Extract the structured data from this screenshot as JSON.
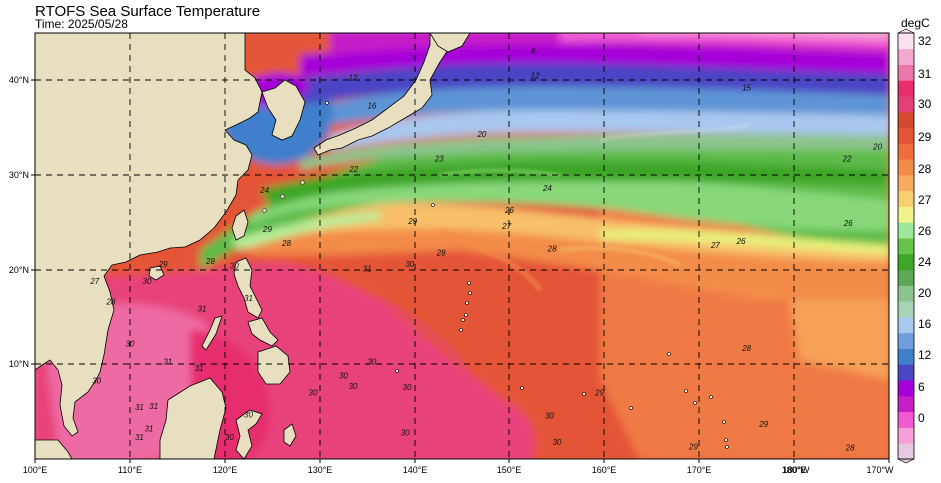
{
  "header": {
    "title": "RTOFS Sea Surface Temperature",
    "time_label": "Time: 2025/05/28"
  },
  "map": {
    "projection": "equirectangular",
    "lon_range": [
      100,
      190
    ],
    "lat_range": [
      0,
      45
    ],
    "x_tick_labels": [
      "100°E",
      "110°E",
      "120°E",
      "130°E",
      "140°E",
      "150°E",
      "160°E",
      "170°E",
      "180°E",
      "180°W",
      "170°W"
    ],
    "y_tick_labels": [
      "10°N",
      "20°N",
      "30°N",
      "40°N"
    ],
    "gridlines": "dashed",
    "land_color": "#e8dfc1",
    "coastline_color": "#000000",
    "contour_labels": [
      {
        "text": "6",
        "lon": 152.5,
        "lat": 42.8
      },
      {
        "text": "12",
        "lon": 133.5,
        "lat": 40.0
      },
      {
        "text": "12",
        "lon": 152.7,
        "lat": 40.2
      },
      {
        "text": "15",
        "lon": 175.0,
        "lat": 38.9
      },
      {
        "text": "16",
        "lon": 135.5,
        "lat": 37.0
      },
      {
        "text": "20",
        "lon": 147.1,
        "lat": 34.0
      },
      {
        "text": "22",
        "lon": 133.6,
        "lat": 30.3
      },
      {
        "text": "22",
        "lon": 185.6,
        "lat": 31.4
      },
      {
        "text": "20",
        "lon": 188.8,
        "lat": 32.7
      },
      {
        "text": "23",
        "lon": 142.6,
        "lat": 31.4
      },
      {
        "text": "24",
        "lon": 154.0,
        "lat": 28.3
      },
      {
        "text": "24",
        "lon": 124.2,
        "lat": 28.1
      },
      {
        "text": "26",
        "lon": 150.0,
        "lat": 26.0
      },
      {
        "text": "27",
        "lon": 149.7,
        "lat": 24.3
      },
      {
        "text": "26",
        "lon": 174.4,
        "lat": 22.7
      },
      {
        "text": "27",
        "lon": 171.7,
        "lat": 22.3
      },
      {
        "text": "26",
        "lon": 185.7,
        "lat": 24.6
      },
      {
        "text": "28",
        "lon": 142.8,
        "lat": 21.5
      },
      {
        "text": "28",
        "lon": 154.5,
        "lat": 21.9
      },
      {
        "text": "29",
        "lon": 139.8,
        "lat": 24.8
      },
      {
        "text": "30",
        "lon": 139.5,
        "lat": 20.3
      },
      {
        "text": "31",
        "lon": 135.0,
        "lat": 19.8
      },
      {
        "text": "28",
        "lon": 126.5,
        "lat": 22.5
      },
      {
        "text": "29",
        "lon": 124.5,
        "lat": 24.0
      },
      {
        "text": "28",
        "lon": 118.5,
        "lat": 20.6
      },
      {
        "text": "29",
        "lon": 113.5,
        "lat": 20.3
      },
      {
        "text": "30",
        "lon": 121.0,
        "lat": 20.1
      },
      {
        "text": "30",
        "lon": 111.8,
        "lat": 18.5
      },
      {
        "text": "31",
        "lon": 122.5,
        "lat": 16.7
      },
      {
        "text": "31",
        "lon": 117.6,
        "lat": 15.6
      },
      {
        "text": "28",
        "lon": 108.0,
        "lat": 16.3
      },
      {
        "text": "27",
        "lon": 106.3,
        "lat": 18.5
      },
      {
        "text": "28",
        "lon": 175.0,
        "lat": 11.4
      },
      {
        "text": "30",
        "lon": 135.5,
        "lat": 10.0
      },
      {
        "text": "30",
        "lon": 132.5,
        "lat": 8.5
      },
      {
        "text": "30",
        "lon": 133.5,
        "lat": 7.4
      },
      {
        "text": "30",
        "lon": 129.3,
        "lat": 6.7
      },
      {
        "text": "30",
        "lon": 139.2,
        "lat": 7.3
      },
      {
        "text": "29",
        "lon": 159.5,
        "lat": 6.7
      },
      {
        "text": "30",
        "lon": 154.2,
        "lat": 4.3
      },
      {
        "text": "30",
        "lon": 155.0,
        "lat": 1.5
      },
      {
        "text": "30",
        "lon": 139.0,
        "lat": 2.5
      },
      {
        "text": "29",
        "lon": 169.4,
        "lat": 1.0
      },
      {
        "text": "29",
        "lon": 176.8,
        "lat": 3.4
      },
      {
        "text": "28",
        "lon": 185.9,
        "lat": 0.9
      },
      {
        "text": "31",
        "lon": 114.0,
        "lat": 10.0
      },
      {
        "text": "31",
        "lon": 117.3,
        "lat": 9.3
      },
      {
        "text": "31",
        "lon": 111.0,
        "lat": 5.2
      },
      {
        "text": "31",
        "lon": 112.5,
        "lat": 5.3
      },
      {
        "text": "31",
        "lon": 111.0,
        "lat": 2.0
      },
      {
        "text": "31",
        "lon": 112.0,
        "lat": 2.9
      },
      {
        "text": "30",
        "lon": 120.5,
        "lat": 2.0
      },
      {
        "text": "30",
        "lon": 122.5,
        "lat": 4.4
      },
      {
        "text": "30",
        "lon": 106.5,
        "lat": 8.0
      },
      {
        "text": "30",
        "lon": 110.0,
        "lat": 11.9
      }
    ]
  },
  "colorbar": {
    "units": "degC",
    "tick_labels": [
      "0",
      "6",
      "12",
      "16",
      "20",
      "24",
      "26",
      "27",
      "28",
      "29",
      "30",
      "31",
      "32"
    ],
    "band_colors": [
      "#e6c8e0",
      "#f5a0d6",
      "#f25ad4",
      "#c51fc8",
      "#a500d8",
      "#4b45c4",
      "#3f7fcb",
      "#6fa0dd",
      "#a8c8ef",
      "#a7d4b7",
      "#8cc48d",
      "#5ba857",
      "#3ea628",
      "#66c548",
      "#9ee89a",
      "#f0f28a",
      "#f8d06f",
      "#f6ad5e",
      "#f38c4a",
      "#ee6f3d",
      "#e45538",
      "#d44a2e",
      "#e34078",
      "#e62d6e",
      "#ec77aa",
      "#f3a9cf",
      "#fce2ee"
    ]
  }
}
